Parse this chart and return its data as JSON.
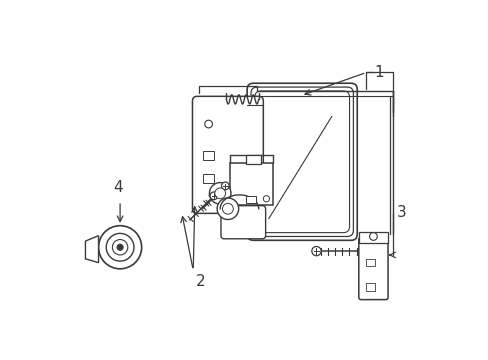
{
  "bg_color": "#ffffff",
  "line_color": "#3a3a3a",
  "figsize": [
    4.89,
    3.6
  ],
  "dpi": 100,
  "label_fontsize": 11,
  "lw_main": 1.1,
  "lw_thin": 0.7,
  "lw_thick": 1.5
}
